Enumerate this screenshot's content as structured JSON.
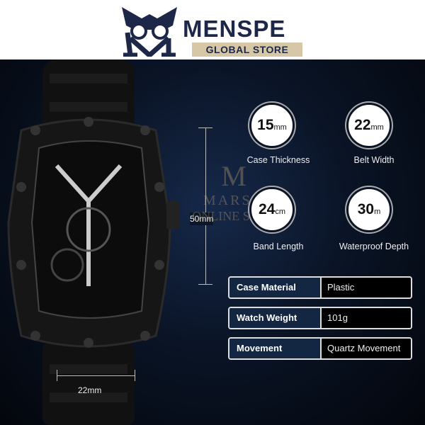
{
  "header": {
    "brand": "MENSPE",
    "subtitle": "GLOBAL STORE",
    "logo_letter": "M"
  },
  "colors": {
    "navy": "#1d2748",
    "gold": "#d6c8a6",
    "cell_dark": "#132642"
  },
  "dimensions": {
    "height": "50mm",
    "width": "22mm"
  },
  "specs_circles": [
    {
      "value": "15",
      "unit": "mm",
      "label": "Case Thickness"
    },
    {
      "value": "22",
      "unit": "mm",
      "label": "Belt Width"
    },
    {
      "value": "24",
      "unit": "cm",
      "label": "Band Length"
    },
    {
      "value": "30",
      "unit": "m",
      "label": "Waterproof Depth"
    }
  ],
  "spec_table": [
    {
      "key": "Case Material",
      "value": "Plastic"
    },
    {
      "key": "Watch Weight",
      "value": "101g"
    },
    {
      "key": "Movement",
      "value": "Quartz Movement"
    }
  ],
  "watermark": {
    "letter": "M",
    "line1": "MARSH",
    "line2": "ONLINE SHOP"
  }
}
